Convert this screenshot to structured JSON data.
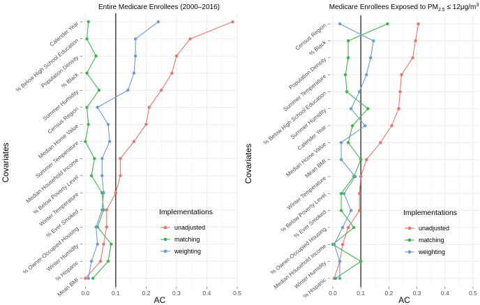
{
  "chart_data": [
    {
      "type": "line",
      "title": "Entire Medicare Enrollees (2000–2016)",
      "title_parts": [],
      "xlabel": "AC",
      "ylabel": "Covariates",
      "xlim": [
        -0.01,
        0.5
      ],
      "xticks": [
        0.0,
        0.1,
        0.2,
        0.3,
        0.4,
        0.5
      ],
      "xtick_labels": [
        "0.0",
        "0.1",
        "0.2",
        "0.3",
        "0.4",
        "0.5"
      ],
      "reference_line": 0.1,
      "categories": [
        "Calender Year",
        "% Below High School Education",
        "Population Density",
        "% Black",
        "Summer Humidity",
        "Census Region",
        "Median Home Value",
        "Summer Temperature",
        "Median Household Income",
        "% Below Poverty Level",
        "Winter Temperature",
        "% Ever Smoked",
        "% Owner-Occupied Housing",
        "Winter Humidity",
        "% Hispanic",
        "Mean BMI"
      ],
      "series": [
        {
          "name": "unadjusted",
          "values": [
            0.485,
            0.345,
            0.3,
            0.285,
            0.25,
            0.21,
            0.2,
            0.16,
            0.115,
            0.115,
            0.1,
            0.07,
            0.07,
            0.06,
            0.05,
            0.0
          ]
        },
        {
          "name": "matching",
          "values": [
            0.01,
            0.005,
            0.035,
            0.005,
            0.045,
            0.005,
            0.01,
            0.0,
            0.03,
            0.02,
            0.055,
            0.06,
            0.04,
            0.085,
            0.075,
            0.025
          ]
        },
        {
          "name": "weighting",
          "values": [
            0.24,
            0.165,
            0.165,
            0.16,
            0.14,
            0.04,
            0.075,
            0.08,
            0.055,
            0.055,
            0.06,
            0.055,
            0.035,
            0.04,
            0.02,
            0.01
          ]
        }
      ],
      "legend": {
        "title": "Implementations",
        "position": "bottom-right",
        "entries": [
          "unadjusted",
          "matching",
          "weighting"
        ]
      },
      "grid": true
    },
    {
      "type": "line",
      "title": "",
      "title_parts": [
        "Medicare Enrollees Exposed to PM",
        "2.5",
        " ≤ 12μg/m",
        "3"
      ],
      "xlabel": "AC",
      "ylabel": "Covariates",
      "xlim": [
        -0.01,
        0.52
      ],
      "xticks": [
        0.0,
        0.1,
        0.2,
        0.3,
        0.4,
        0.5
      ],
      "xtick_labels": [
        "0.0",
        "0.1",
        "0.2",
        "0.3",
        "0.4",
        "0.5"
      ],
      "reference_line": 0.1,
      "categories": [
        "Census Region",
        "% Black",
        "Population Density",
        "Summer Temperature",
        "% Below High School Education",
        "Summer Humidity",
        "Calender Year",
        "Median Home Value",
        "Mean BMI",
        "Winter Temperature",
        "% Below Poverty Level",
        "% Ever Smoked",
        "% Owner-Occupied Housing",
        "Median Household Income",
        "Winter Humidity",
        "% Hispanic"
      ],
      "series": [
        {
          "name": "unadjusted",
          "values": [
            0.305,
            0.295,
            0.285,
            0.245,
            0.24,
            0.235,
            0.21,
            0.17,
            0.12,
            0.1,
            0.095,
            0.095,
            0.055,
            0.035,
            0.025,
            0.005
          ]
        },
        {
          "name": "matching",
          "values": [
            0.195,
            0.055,
            0.055,
            0.045,
            0.05,
            0.125,
            0.07,
            0.055,
            0.1,
            0.075,
            0.03,
            0.03,
            0.075,
            0.0,
            0.1,
            0.01
          ]
        },
        {
          "name": "weighting",
          "values": [
            0.025,
            0.145,
            0.135,
            0.12,
            0.095,
            0.065,
            0.115,
            0.03,
            0.03,
            0.08,
            0.04,
            0.065,
            0.035,
            0.005,
            0.025,
            0.025
          ]
        }
      ],
      "legend": {
        "title": "Implementations",
        "position": "bottom-right",
        "entries": [
          "unadjusted",
          "matching",
          "weighting"
        ]
      },
      "grid": true
    }
  ],
  "colors": {
    "unadjusted": "#e8756e",
    "matching": "#3cb54a",
    "weighting": "#6b9bd1",
    "panel": "#ffffff",
    "grid": "#ebebeb",
    "reference": "#333333"
  }
}
